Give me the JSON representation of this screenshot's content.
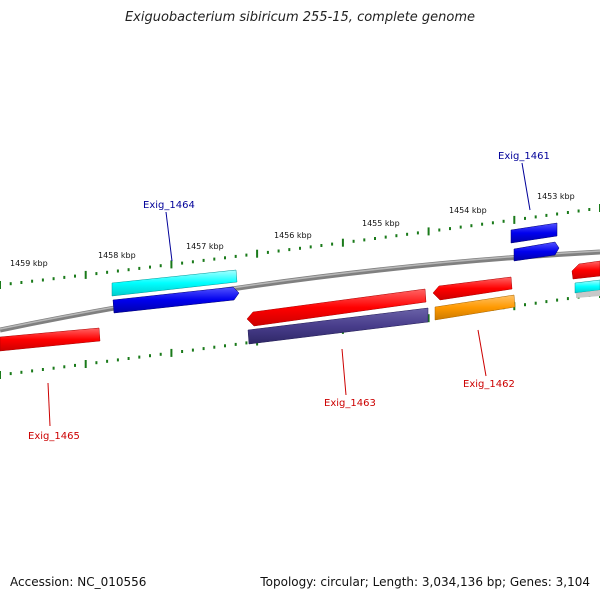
{
  "title": "Exiguobacterium sibiricum 255-15, complete genome",
  "footer": {
    "accession": "Accession: NC_010556",
    "summary": "Topology: circular; Length: 3,034,136 bp; Genes: 3,104"
  },
  "scale": {
    "unit": "kbp",
    "tick_labels": [
      "1459 kbp",
      "1458 kbp",
      "1457 kbp",
      "1456 kbp",
      "1455 kbp",
      "1454 kbp",
      "1453 kbp"
    ],
    "tick_color": "#1a7a1a"
  },
  "genes": [
    {
      "label": "Exig_1465",
      "label_color": "#cc0000"
    },
    {
      "label": "Exig_1464",
      "label_color": "#000099"
    },
    {
      "label": "Exig_1463",
      "label_color": "#cc0000"
    },
    {
      "label": "Exig_1462",
      "label_color": "#cc0000"
    },
    {
      "label": "Exig_1461",
      "label_color": "#000099"
    }
  ],
  "colors": {
    "backbone": "#808080",
    "red": "#ff0000",
    "cyan": "#00ffff",
    "blue": "#0000ee",
    "slate": "#483d8b",
    "orange": "#ff9900"
  }
}
